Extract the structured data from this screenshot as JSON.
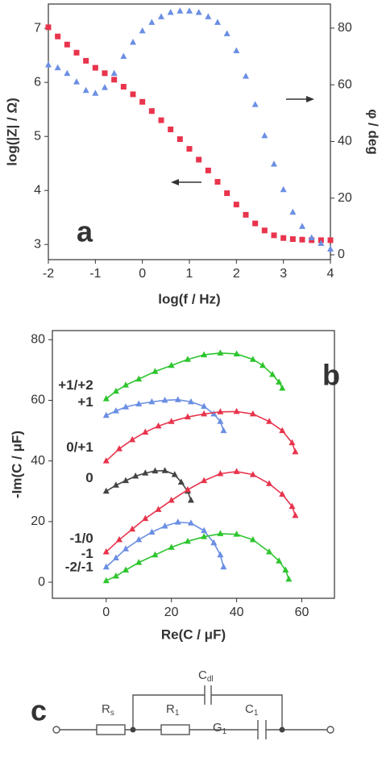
{
  "chart_data": [
    {
      "type": "scatter",
      "panel_label": "a",
      "xlabel": "log(f / Hz)",
      "ylabel": "log(|Z| / Ω)",
      "y2label": "φ / deg",
      "xlim": [
        -2,
        4
      ],
      "xticks": [
        -2,
        -1,
        0,
        1,
        2,
        3,
        4
      ],
      "ylim": [
        2.72,
        7.45
      ],
      "yticks": [
        3,
        4,
        5,
        6,
        7
      ],
      "y2lim": [
        -1.7,
        88.5
      ],
      "y2ticks": [
        0,
        20,
        40,
        60,
        80
      ],
      "x": [
        -2,
        -1.8,
        -1.6,
        -1.4,
        -1.2,
        -1,
        -0.8,
        -0.6,
        -0.4,
        -0.2,
        0,
        0.2,
        0.4,
        0.6,
        0.8,
        1,
        1.2,
        1.4,
        1.6,
        1.8,
        2,
        2.2,
        2.4,
        2.6,
        2.8,
        3,
        3.2,
        3.4,
        3.6,
        3.8,
        4
      ],
      "series": [
        {
          "color": "#e8344c",
          "marker": "square",
          "values": [
            7.02,
            6.85,
            6.7,
            6.55,
            6.4,
            6.27,
            6.17,
            6.05,
            5.92,
            5.78,
            5.64,
            5.47,
            5.3,
            5.13,
            4.95,
            4.77,
            4.57,
            4.37,
            4.16,
            3.95,
            3.74,
            3.55,
            3.39,
            3.26,
            3.17,
            3.12,
            3.1,
            3.09,
            3.08,
            3.08,
            3.08
          ]
        },
        {
          "color": "#6b8fe3",
          "marker": "triangle",
          "axis": "y2",
          "values": [
            67,
            66,
            64,
            61,
            58,
            57,
            59,
            64,
            70,
            75,
            79,
            82,
            84,
            85.5,
            86,
            86,
            85.5,
            84,
            82,
            78,
            72,
            63,
            53,
            42,
            32,
            23,
            15,
            10,
            6,
            4,
            2
          ]
        }
      ]
    },
    {
      "type": "scatter",
      "panel_label": "b",
      "connect": true,
      "xlabel": "Re(C / μF)",
      "ylabel": "-Im(C / μF)",
      "xlim": [
        -16.5,
        70
      ],
      "xticks": [
        0,
        20,
        40,
        60
      ],
      "ylim": [
        -5.3,
        83
      ],
      "yticks": [
        0,
        20,
        40,
        60,
        80
      ],
      "series": [
        {
          "name": "+1/+2",
          "color": "#2ec52e",
          "marker": "triangle",
          "x": [
            0,
            3,
            6,
            10,
            15,
            20,
            25,
            30,
            35,
            40,
            45,
            48,
            51,
            53,
            54
          ],
          "values": [
            60.5,
            63,
            65,
            67,
            69.5,
            71.5,
            73.5,
            75,
            75.6,
            75.3,
            73.5,
            71.5,
            68.5,
            66,
            64
          ]
        },
        {
          "name": "+1",
          "color": "#6b8fe3",
          "marker": "triangle",
          "x": [
            0,
            3,
            6,
            10,
            14,
            18,
            22,
            26,
            30,
            33,
            35,
            36
          ],
          "values": [
            55,
            56.5,
            57.8,
            58.8,
            59.5,
            60,
            60.2,
            59.5,
            58,
            55.5,
            53,
            50
          ]
        },
        {
          "name": "0/+1",
          "color": "#e8344c",
          "marker": "triangle",
          "x": [
            0,
            4,
            8,
            12,
            16,
            20,
            25,
            30,
            35,
            40,
            45,
            50,
            54,
            57,
            58
          ],
          "values": [
            40,
            44,
            47,
            49.5,
            51.5,
            53,
            54.5,
            55.5,
            56.2,
            56.3,
            55.5,
            53,
            50,
            46,
            43
          ]
        },
        {
          "name": "0",
          "color": "#444444",
          "marker": "triangle",
          "x": [
            0,
            3,
            6,
            9,
            12,
            15,
            18,
            21,
            23,
            25,
            26
          ],
          "values": [
            30,
            32,
            33.5,
            35,
            36,
            36.7,
            36.8,
            35.5,
            33,
            30,
            27
          ]
        },
        {
          "name": "-1/0",
          "color": "#e8344c",
          "marker": "triangle",
          "x": [
            0,
            4,
            8,
            12,
            16,
            20,
            25,
            30,
            35,
            40,
            45,
            50,
            54,
            57,
            58
          ],
          "values": [
            10,
            14,
            17.5,
            21,
            24,
            27,
            30.5,
            33.5,
            35.8,
            36.5,
            35.5,
            32.5,
            29,
            25,
            22
          ]
        },
        {
          "name": "-1",
          "color": "#6b8fe3",
          "marker": "triangle",
          "x": [
            0,
            3,
            6,
            10,
            14,
            18,
            22,
            26,
            30,
            33,
            35,
            36
          ],
          "values": [
            5,
            8,
            11,
            14,
            16.5,
            18.5,
            19.8,
            19.5,
            17,
            13,
            9,
            5
          ]
        },
        {
          "name": "-2/-1",
          "color": "#2ec52e",
          "marker": "triangle",
          "x": [
            0,
            3,
            6,
            10,
            15,
            20,
            25,
            30,
            35,
            40,
            45,
            50,
            53,
            55,
            56
          ],
          "values": [
            0.5,
            2,
            4,
            6.5,
            9,
            11.5,
            13.5,
            15,
            16,
            15.8,
            14,
            10,
            7,
            4,
            1
          ]
        }
      ]
    }
  ],
  "circuit": {
    "panel_label": "c",
    "labels": [
      {
        "main": "C",
        "sub": "dl"
      },
      {
        "main": "R",
        "sub": "s"
      },
      {
        "main": "R",
        "sub": "1"
      },
      {
        "main": "C",
        "sub": "1"
      },
      {
        "main": "G",
        "sub": "1"
      }
    ]
  }
}
